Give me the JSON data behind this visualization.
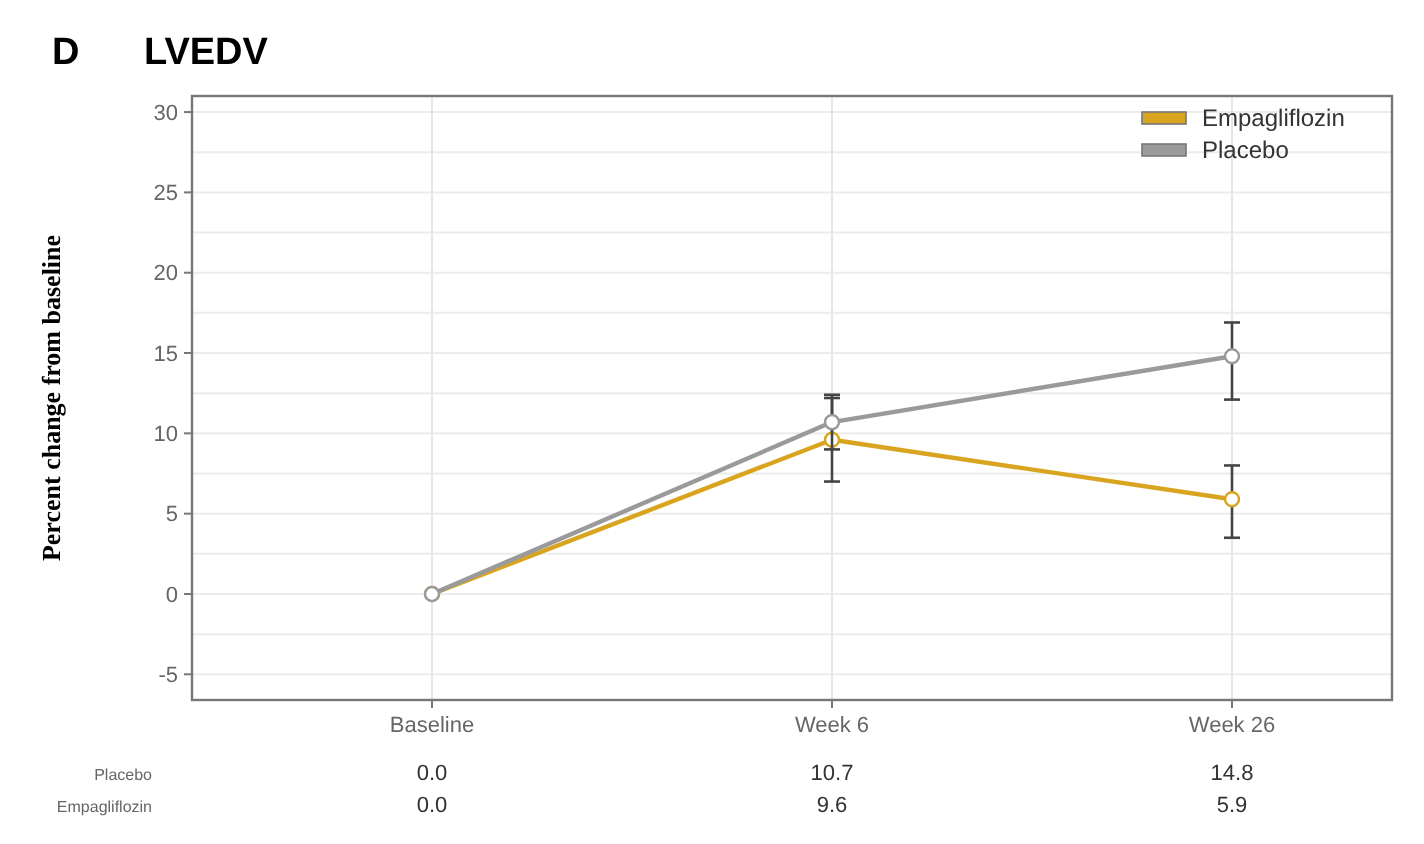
{
  "chart_data": {
    "type": "line",
    "title": "LVEDV",
    "ylabel": "Percent change from baseline",
    "annotations": [
      "D"
    ],
    "categories": [
      "Baseline",
      "Week 6",
      "Week 26"
    ],
    "series": [
      {
        "name": "Empagliflozin",
        "color": "#d9a520",
        "values": [
          0.0,
          9.6,
          5.9
        ],
        "value_labels": [
          "0.0",
          "9.6",
          "5.9"
        ],
        "errors": [
          null,
          [
            7.0,
            12.2
          ],
          [
            3.5,
            8.0
          ]
        ]
      },
      {
        "name": "Placebo",
        "color": "#9a9a9a",
        "values": [
          0.0,
          10.7,
          14.8
        ],
        "value_labels": [
          "0.0",
          "10.7",
          "14.8"
        ],
        "errors": [
          null,
          [
            9.0,
            12.4
          ],
          [
            12.1,
            16.9
          ]
        ]
      }
    ],
    "ylim": [
      -6.6,
      31
    ],
    "yticks": [
      -5,
      0,
      5,
      10,
      15,
      20,
      25,
      30
    ],
    "grid": true,
    "legend": "top right",
    "marker": "circle"
  }
}
